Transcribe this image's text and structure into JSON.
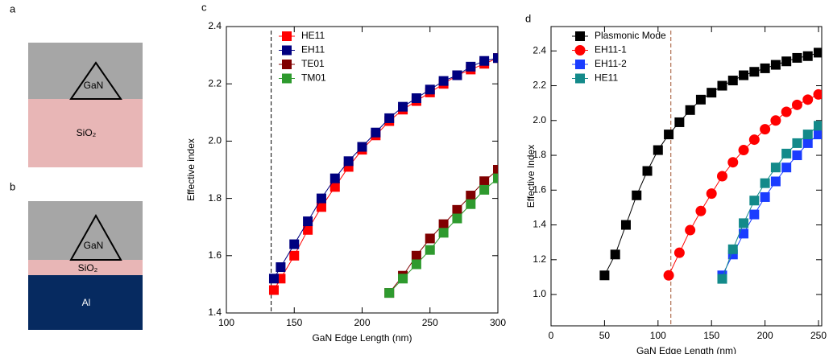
{
  "diagrams": [
    {
      "label": "a",
      "texts": [
        "GaN",
        "SiO₂"
      ]
    },
    {
      "label": "b",
      "texts": [
        "GaN",
        "SiO₂",
        "Al"
      ]
    }
  ],
  "chart_data": [
    {
      "type": "line",
      "panel_label": "c",
      "x_label": "GaN Edge Length (nm)",
      "y_label": "Effective index",
      "xlim": [
        100,
        300
      ],
      "ylim": [
        1.4,
        2.4
      ],
      "xticks": [
        100,
        150,
        200,
        250,
        300
      ],
      "yticks": [
        1.4,
        1.6,
        1.8,
        {
          "value": 2,
          "label": "2.0"
        },
        2.2,
        2.4
      ],
      "reference_x": 133,
      "reference_color": "#000000",
      "series": [
        {
          "name": "HE11",
          "color": "#ff0000",
          "marker": "square",
          "x": [
            135,
            140,
            150,
            160,
            170,
            180,
            190,
            200,
            210,
            220,
            230,
            240,
            250,
            260,
            270,
            280,
            290,
            300
          ],
          "values": [
            1.48,
            1.52,
            1.6,
            1.69,
            1.77,
            1.84,
            1.91,
            1.97,
            2.02,
            2.07,
            2.11,
            2.14,
            2.17,
            2.2,
            2.23,
            2.25,
            2.27,
            2.29
          ]
        },
        {
          "name": "EH11",
          "color": "#000080",
          "marker": "square",
          "x": [
            135,
            140,
            150,
            160,
            170,
            180,
            190,
            200,
            210,
            220,
            230,
            240,
            250,
            260,
            270,
            280,
            290,
            300
          ],
          "values": [
            1.52,
            1.56,
            1.64,
            1.72,
            1.8,
            1.87,
            1.93,
            1.98,
            2.03,
            2.08,
            2.12,
            2.15,
            2.18,
            2.21,
            2.23,
            2.26,
            2.28,
            2.29
          ]
        },
        {
          "name": "TE01",
          "color": "#800000",
          "marker": "square",
          "x": [
            220,
            230,
            240,
            250,
            260,
            270,
            280,
            290,
            300
          ],
          "values": [
            1.47,
            1.53,
            1.6,
            1.66,
            1.71,
            1.76,
            1.81,
            1.86,
            1.9
          ]
        },
        {
          "name": "TM01",
          "color": "#2e9a2e",
          "marker": "square",
          "x": [
            220,
            230,
            240,
            250,
            260,
            270,
            280,
            290,
            300
          ],
          "values": [
            1.47,
            1.52,
            1.57,
            1.62,
            1.68,
            1.73,
            1.78,
            1.83,
            1.87
          ]
        }
      ]
    },
    {
      "type": "line",
      "panel_label": "d",
      "x_label": "GaN Edge Length (nm)",
      "y_label": "Effective Index",
      "xlim": [
        0,
        253
      ],
      "ylim": [
        0.82,
        2.54
      ],
      "xticks": [
        0,
        50,
        100,
        150,
        200,
        250
      ],
      "yticks": [
        {
          "value": 1,
          "label": "1.0"
        },
        1.2,
        1.4,
        1.6,
        1.8,
        {
          "value": 2,
          "label": "2.0"
        },
        2.2,
        2.4
      ],
      "reference_x": 112,
      "reference_color": "#a0522d",
      "series": [
        {
          "name": "Plasmonic Mode",
          "color": "#000000",
          "marker": "square",
          "x": [
            50,
            60,
            70,
            80,
            90,
            100,
            110,
            120,
            130,
            140,
            150,
            160,
            170,
            180,
            190,
            200,
            210,
            220,
            230,
            240,
            250
          ],
          "values": [
            1.11,
            1.23,
            1.4,
            1.57,
            1.71,
            1.83,
            1.92,
            1.99,
            2.06,
            2.12,
            2.16,
            2.2,
            2.23,
            2.26,
            2.28,
            2.3,
            2.32,
            2.34,
            2.36,
            2.37,
            2.39
          ]
        },
        {
          "name": "EH11-1",
          "color": "#ff0000",
          "marker": "circle",
          "x": [
            110,
            120,
            130,
            140,
            150,
            160,
            170,
            180,
            190,
            200,
            210,
            220,
            230,
            240,
            250
          ],
          "values": [
            1.11,
            1.24,
            1.37,
            1.48,
            1.58,
            1.68,
            1.76,
            1.83,
            1.89,
            1.95,
            2.0,
            2.05,
            2.09,
            2.12,
            2.15
          ]
        },
        {
          "name": "EH11-2",
          "color": "#1a3cff",
          "marker": "square",
          "x": [
            160,
            170,
            180,
            190,
            200,
            210,
            220,
            230,
            240,
            250
          ],
          "values": [
            1.11,
            1.23,
            1.35,
            1.46,
            1.56,
            1.65,
            1.73,
            1.8,
            1.87,
            1.92
          ]
        },
        {
          "name": "HE11",
          "color": "#138a8a",
          "marker": "square",
          "x": [
            160,
            170,
            180,
            190,
            200,
            210,
            220,
            230,
            240,
            250
          ],
          "values": [
            1.09,
            1.26,
            1.41,
            1.54,
            1.64,
            1.73,
            1.81,
            1.87,
            1.92,
            1.97
          ]
        }
      ]
    }
  ]
}
